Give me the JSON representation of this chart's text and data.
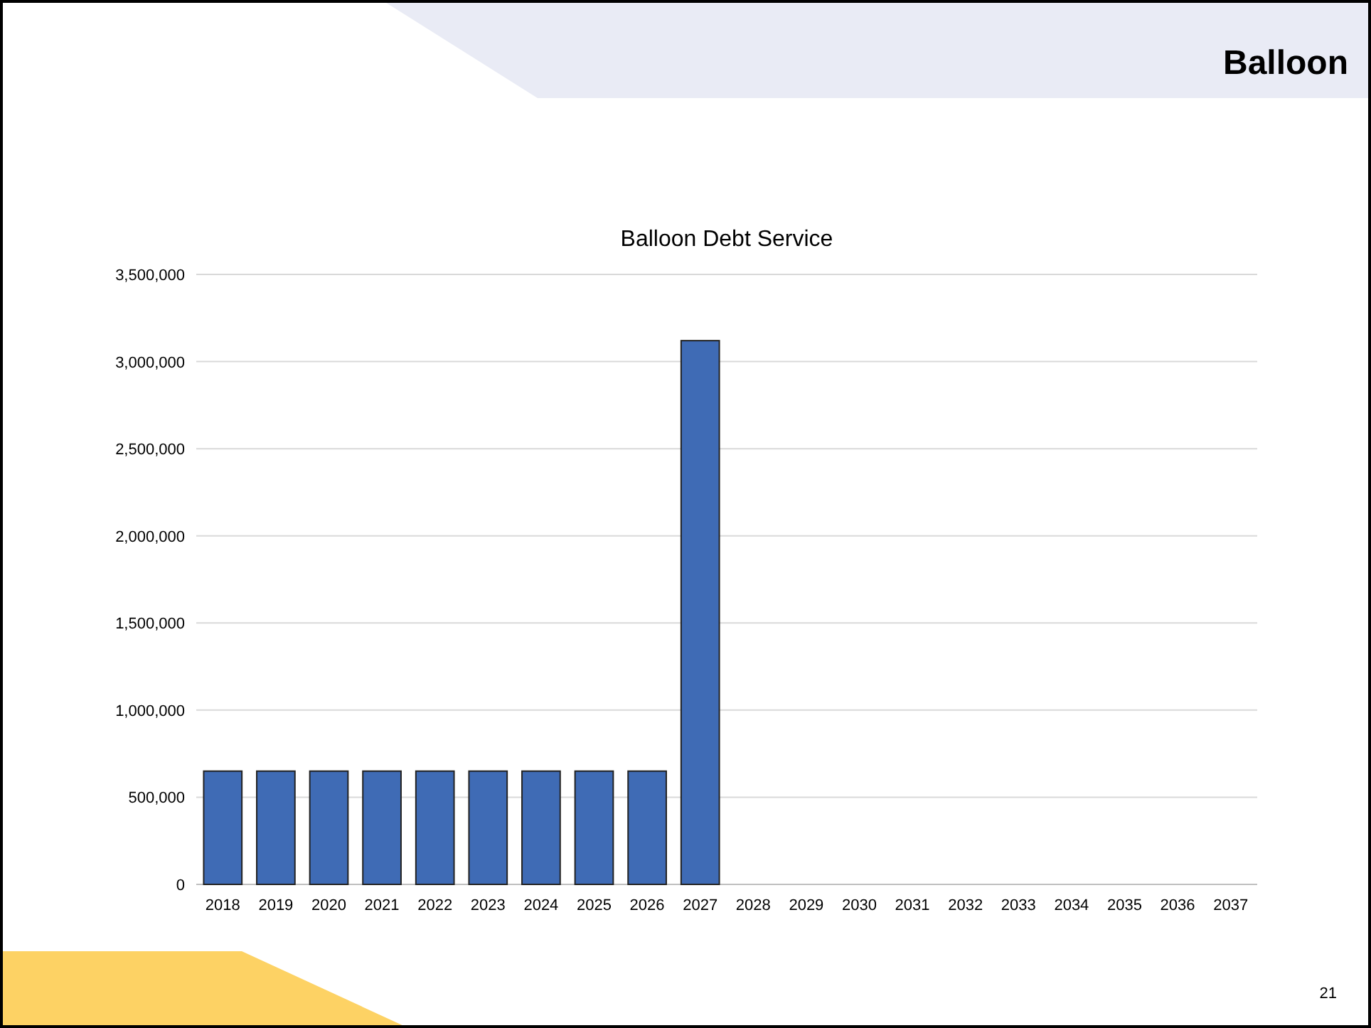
{
  "chart_data": {
    "type": "bar",
    "title": "Balloon",
    "subtitle": "Balloon Debt Service",
    "categories": [
      "2018",
      "2019",
      "2020",
      "2021",
      "2022",
      "2023",
      "2024",
      "2025",
      "2026",
      "2027",
      "2028",
      "2029",
      "2030",
      "2031",
      "2032",
      "2033",
      "2034",
      "2035",
      "2036",
      "2037"
    ],
    "values": [
      650000,
      650000,
      650000,
      650000,
      650000,
      650000,
      650000,
      650000,
      650000,
      3120000,
      null,
      null,
      null,
      null,
      null,
      null,
      null,
      null,
      null,
      null
    ],
    "color": "#3f6bb5",
    "ylim": [
      0,
      3500000
    ],
    "yticks": [
      {
        "value": 0,
        "label": "0"
      },
      {
        "value": 500000,
        "label": "500,000"
      },
      {
        "value": 1000000,
        "label": "1,000,000"
      },
      {
        "value": 1500000,
        "label": "1,500,000"
      },
      {
        "value": 2000000,
        "label": "2,000,000"
      },
      {
        "value": 2500000,
        "label": "2,500,000"
      },
      {
        "value": 3000000,
        "label": "3,000,000"
      },
      {
        "value": 3500000,
        "label": "3,500,000"
      }
    ],
    "grid": "y",
    "annotations": [
      "21"
    ]
  }
}
